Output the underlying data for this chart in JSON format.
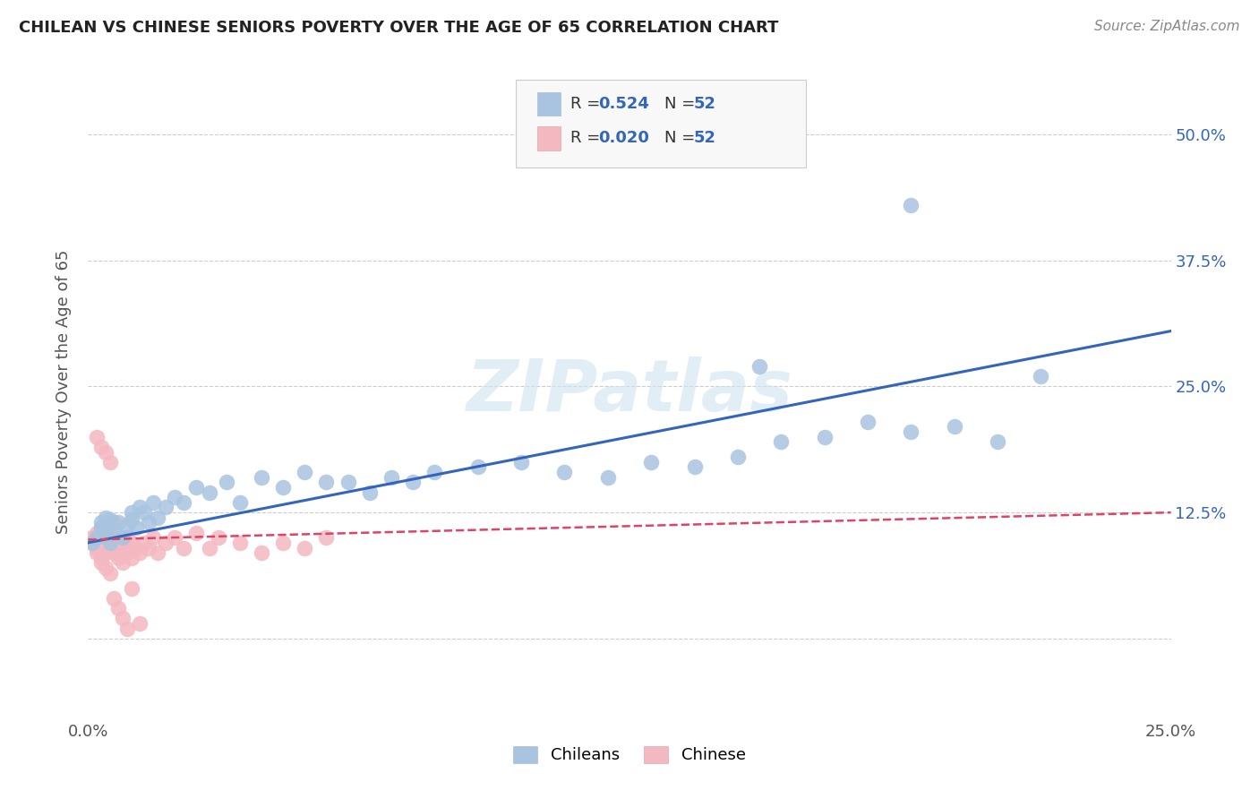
{
  "title": "CHILEAN VS CHINESE SENIORS POVERTY OVER THE AGE OF 65 CORRELATION CHART",
  "source": "Source: ZipAtlas.com",
  "ylabel": "Seniors Poverty Over the Age of 65",
  "xlim": [
    0.0,
    0.25
  ],
  "ylim": [
    -0.08,
    0.57
  ],
  "background_color": "#ffffff",
  "grid_color": "#cccccc",
  "chilean_color": "#a8c4e0",
  "chinese_color": "#f4b8c1",
  "chilean_line_color": "#3366bb",
  "chinese_line_color": "#dd4466",
  "watermark": "ZIPatlas",
  "chilean_x": [
    0.001,
    0.002,
    0.003,
    0.003,
    0.004,
    0.004,
    0.005,
    0.005,
    0.006,
    0.007,
    0.008,
    0.009,
    0.01,
    0.01,
    0.011,
    0.012,
    0.013,
    0.014,
    0.015,
    0.016,
    0.018,
    0.02,
    0.022,
    0.025,
    0.028,
    0.032,
    0.035,
    0.04,
    0.045,
    0.05,
    0.055,
    0.06,
    0.065,
    0.07,
    0.075,
    0.08,
    0.09,
    0.1,
    0.11,
    0.12,
    0.13,
    0.14,
    0.15,
    0.16,
    0.17,
    0.18,
    0.19,
    0.2,
    0.21,
    0.22,
    0.155,
    0.19
  ],
  "chilean_y": [
    0.095,
    0.1,
    0.11,
    0.115,
    0.105,
    0.12,
    0.095,
    0.118,
    0.108,
    0.115,
    0.1,
    0.112,
    0.118,
    0.125,
    0.11,
    0.13,
    0.125,
    0.115,
    0.135,
    0.12,
    0.13,
    0.14,
    0.135,
    0.15,
    0.145,
    0.155,
    0.135,
    0.16,
    0.15,
    0.165,
    0.155,
    0.155,
    0.145,
    0.16,
    0.155,
    0.165,
    0.17,
    0.175,
    0.165,
    0.16,
    0.175,
    0.17,
    0.18,
    0.195,
    0.2,
    0.215,
    0.205,
    0.21,
    0.195,
    0.26,
    0.27,
    0.43
  ],
  "chinese_x": [
    0.001,
    0.001,
    0.002,
    0.002,
    0.002,
    0.003,
    0.003,
    0.003,
    0.004,
    0.004,
    0.004,
    0.005,
    0.005,
    0.005,
    0.006,
    0.006,
    0.006,
    0.007,
    0.007,
    0.008,
    0.008,
    0.009,
    0.009,
    0.01,
    0.01,
    0.011,
    0.012,
    0.013,
    0.014,
    0.015,
    0.016,
    0.018,
    0.02,
    0.022,
    0.025,
    0.028,
    0.03,
    0.035,
    0.04,
    0.045,
    0.05,
    0.055,
    0.002,
    0.003,
    0.004,
    0.005,
    0.006,
    0.007,
    0.008,
    0.009,
    0.01,
    0.012
  ],
  "chinese_y": [
    0.095,
    0.1,
    0.085,
    0.09,
    0.105,
    0.075,
    0.08,
    0.11,
    0.07,
    0.085,
    0.1,
    0.065,
    0.09,
    0.105,
    0.085,
    0.1,
    0.115,
    0.08,
    0.095,
    0.075,
    0.09,
    0.085,
    0.1,
    0.08,
    0.095,
    0.09,
    0.085,
    0.095,
    0.09,
    0.1,
    0.085,
    0.095,
    0.1,
    0.09,
    0.105,
    0.09,
    0.1,
    0.095,
    0.085,
    0.095,
    0.09,
    0.1,
    0.2,
    0.19,
    0.185,
    0.175,
    0.04,
    0.03,
    0.02,
    0.01,
    0.05,
    0.015
  ],
  "chilean_line_x": [
    0.0,
    0.25
  ],
  "chilean_line_y": [
    0.095,
    0.305
  ],
  "chinese_line_x": [
    0.0,
    0.25
  ],
  "chinese_line_y": [
    0.098,
    0.125
  ]
}
